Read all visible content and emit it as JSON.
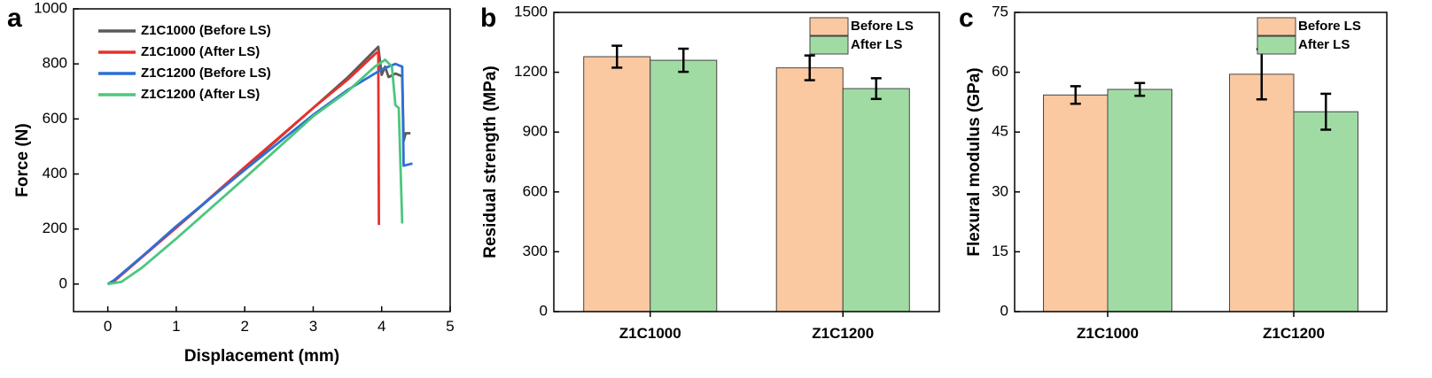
{
  "chart_data": [
    {
      "panel": "a",
      "type": "line",
      "xlabel": "Displacement (mm)",
      "ylabel": "Force (N)",
      "xlim": [
        -0.5,
        5
      ],
      "ylim": [
        -100,
        1000
      ],
      "xticks": [
        "0",
        "1",
        "2",
        "3",
        "4",
        "5"
      ],
      "yticks": [
        "0",
        "200",
        "400",
        "600",
        "800",
        "1000"
      ],
      "legend_position": "top-left",
      "series": [
        {
          "name": "Z1C1000 (Before LS)",
          "color": "#5a5a5a",
          "points": [
            [
              0,
              0
            ],
            [
              0.05,
              5
            ],
            [
              0.5,
              100
            ],
            [
              1,
              205
            ],
            [
              2,
              420
            ],
            [
              3,
              640
            ],
            [
              3.5,
              750
            ],
            [
              3.95,
              862
            ],
            [
              4.0,
              760
            ],
            [
              4.05,
              790
            ],
            [
              4.1,
              752
            ],
            [
              4.2,
              765
            ],
            [
              4.3,
              755
            ],
            [
              4.32,
              520
            ],
            [
              4.35,
              548
            ],
            [
              4.42,
              548
            ]
          ]
        },
        {
          "name": "Z1C1000 (After LS)",
          "color": "#e8312b",
          "points": [
            [
              0,
              0
            ],
            [
              0.1,
              12
            ],
            [
              0.5,
              98
            ],
            [
              1,
              205
            ],
            [
              2,
              425
            ],
            [
              3,
              640
            ],
            [
              3.5,
              742
            ],
            [
              3.9,
              835
            ],
            [
              3.95,
              845
            ],
            [
              3.96,
              215
            ]
          ]
        },
        {
          "name": "Z1C1200 (Before LS)",
          "color": "#2f6fd6",
          "points": [
            [
              0,
              0
            ],
            [
              0.1,
              15
            ],
            [
              0.5,
              100
            ],
            [
              1,
              210
            ],
            [
              2,
              415
            ],
            [
              3,
              615
            ],
            [
              3.5,
              705
            ],
            [
              4,
              780
            ],
            [
              4.2,
              800
            ],
            [
              4.3,
              790
            ],
            [
              4.32,
              430
            ],
            [
              4.45,
              438
            ]
          ]
        },
        {
          "name": "Z1C1200 (After LS)",
          "color": "#4cc77d",
          "points": [
            [
              0,
              0
            ],
            [
              0.2,
              8
            ],
            [
              0.5,
              60
            ],
            [
              1,
              165
            ],
            [
              2,
              385
            ],
            [
              3,
              610
            ],
            [
              3.5,
              700
            ],
            [
              3.9,
              790
            ],
            [
              4.05,
              815
            ],
            [
              4.15,
              790
            ],
            [
              4.2,
              650
            ],
            [
              4.25,
              640
            ],
            [
              4.3,
              220
            ]
          ]
        }
      ]
    },
    {
      "panel": "b",
      "type": "bar",
      "xlabel": "",
      "ylabel": "Residual strength (MPa)",
      "ylim": [
        0,
        1500
      ],
      "yticks": [
        "0",
        "300",
        "600",
        "900",
        "1200",
        "1500"
      ],
      "categories": [
        "Z1C1000",
        "Z1C1200"
      ],
      "legend_position": "top-right",
      "series": [
        {
          "name": "Before LS",
          "color": "#fbc9a1",
          "values": [
            1278,
            1222
          ],
          "errors": [
            55,
            62
          ]
        },
        {
          "name": "After LS",
          "color": "#a1dba4",
          "values": [
            1260,
            1118
          ],
          "errors": [
            58,
            52
          ]
        }
      ]
    },
    {
      "panel": "c",
      "type": "bar",
      "xlabel": "",
      "ylabel": "Flexural modulus (GPa)",
      "ylim": [
        0,
        75
      ],
      "yticks": [
        "0",
        "15",
        "30",
        "45",
        "60",
        "75"
      ],
      "categories": [
        "Z1C1000",
        "Z1C1200"
      ],
      "legend_position": "top-right",
      "series": [
        {
          "name": "Before LS",
          "color": "#fbc9a1",
          "values": [
            54.3,
            59.5
          ],
          "errors": [
            2.2,
            6.3
          ]
        },
        {
          "name": "After LS",
          "color": "#a1dba4",
          "values": [
            55.7,
            50.1
          ],
          "errors": [
            1.6,
            4.5
          ]
        }
      ]
    }
  ]
}
